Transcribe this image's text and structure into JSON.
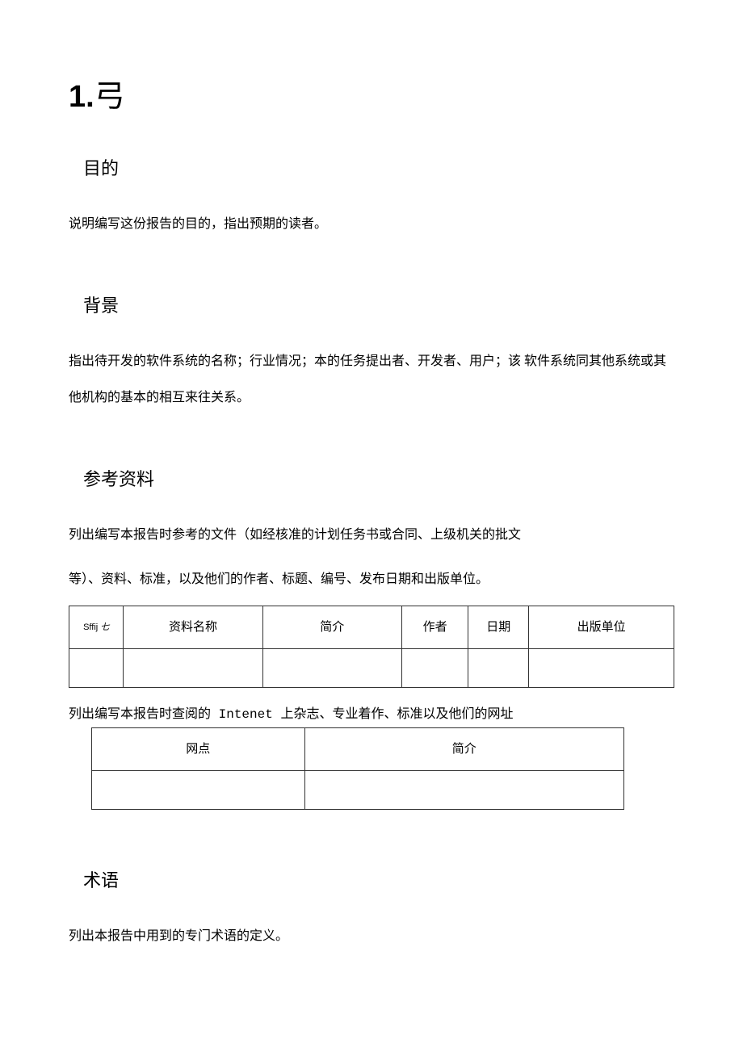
{
  "heading": {
    "number": "1.",
    "title": "弓"
  },
  "sections": {
    "purpose": {
      "title": "目的",
      "body": "说明编写这份报告的目的，指出预期的读者。"
    },
    "background": {
      "title": "背景",
      "body": "指出待开发的软件系统的名称；行业情况；本的任务提出者、开发者、用户；该 软件系统同其他系统或其他机构的基本的相互来往关系。"
    },
    "references": {
      "title": "参考资料",
      "body1": "列出编写本报告时参考的文件（如经核准的计划任务书或合同、上级机关的批文",
      "body2": "等）、资料、标准，以及他们的作者、标题、编号、发布日期和出版单位。",
      "table1_headers": {
        "c1_prefix": "Sffij",
        "c1_suffix": "七",
        "c2": "资料名称",
        "c3": "简介",
        "c4": "作者",
        "c5": "日期",
        "c6": "出版单位"
      },
      "body3_pre": "列出编写本报告时查阅的",
      "body3_latin": " Intenet ",
      "body3_post": "上杂志、专业着作、标准以及他们的网址",
      "table2_headers": {
        "c1": "网点",
        "c2": "简介"
      }
    },
    "terms": {
      "title": "术语",
      "body": "列出本报告中用到的专门术语的定义。"
    }
  },
  "styling": {
    "background_color": "#ffffff",
    "text_color": "#000000",
    "h1_fontsize": 38,
    "h2_fontsize": 22,
    "body_fontsize": 16,
    "table_border_color": "#333333",
    "table_small_fontsize": 11,
    "line_height_body": 2.8
  }
}
